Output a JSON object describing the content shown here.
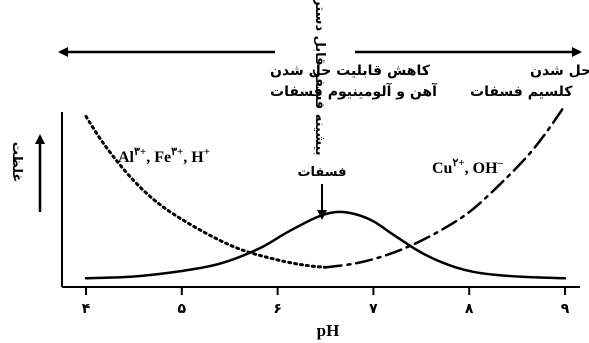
{
  "chart_data": {
    "type": "line",
    "xlabel": "pH",
    "ylabel": "غلظت",
    "xlim": [
      4,
      9
    ],
    "ylim": [
      0,
      1
    ],
    "xticks": [
      4,
      5,
      6,
      7,
      8,
      9
    ],
    "xtick_labels": [
      "۴",
      "۵",
      "۶",
      "۷",
      "۸",
      "۹"
    ],
    "grid": false,
    "series": [
      {
        "name": "Al³⁺, Fe³⁺, H⁺",
        "style": "dotted",
        "x": [
          4.0,
          4.2,
          4.5,
          4.8,
          5.2,
          5.6,
          6.0,
          6.3,
          6.5
        ],
        "y": [
          0.9,
          0.74,
          0.55,
          0.41,
          0.28,
          0.18,
          0.12,
          0.09,
          0.08
        ]
      },
      {
        "name": "Cu²⁺, OH⁻",
        "style": "dashdot",
        "x": [
          6.5,
          6.8,
          7.1,
          7.4,
          7.7,
          8.0,
          8.3,
          8.6,
          8.8,
          9.0
        ],
        "y": [
          0.08,
          0.1,
          0.14,
          0.2,
          0.28,
          0.38,
          0.52,
          0.68,
          0.81,
          0.96
        ]
      },
      {
        "name": "فسفات",
        "style": "solid",
        "x": [
          4.0,
          4.5,
          5.0,
          5.4,
          5.8,
          6.1,
          6.4,
          6.6,
          6.8,
          7.0,
          7.2,
          7.5,
          7.8,
          8.1,
          8.5,
          9.0
        ],
        "y": [
          0.02,
          0.03,
          0.06,
          0.1,
          0.18,
          0.27,
          0.35,
          0.38,
          0.37,
          0.33,
          0.26,
          0.16,
          0.09,
          0.05,
          0.03,
          0.02
        ]
      }
    ],
    "annotations": {
      "top_divider": "بیشینه فسفر قابل دسترس",
      "left_arrow_text": [
        "کاهش قابلیت حل شدن",
        "آهن و آلومینیوم فسفات"
      ],
      "right_arrow_text": [
        "کاهش قابلیت حل شدن",
        "کلسیم فسفات"
      ],
      "peak_label": "فسفات"
    }
  }
}
